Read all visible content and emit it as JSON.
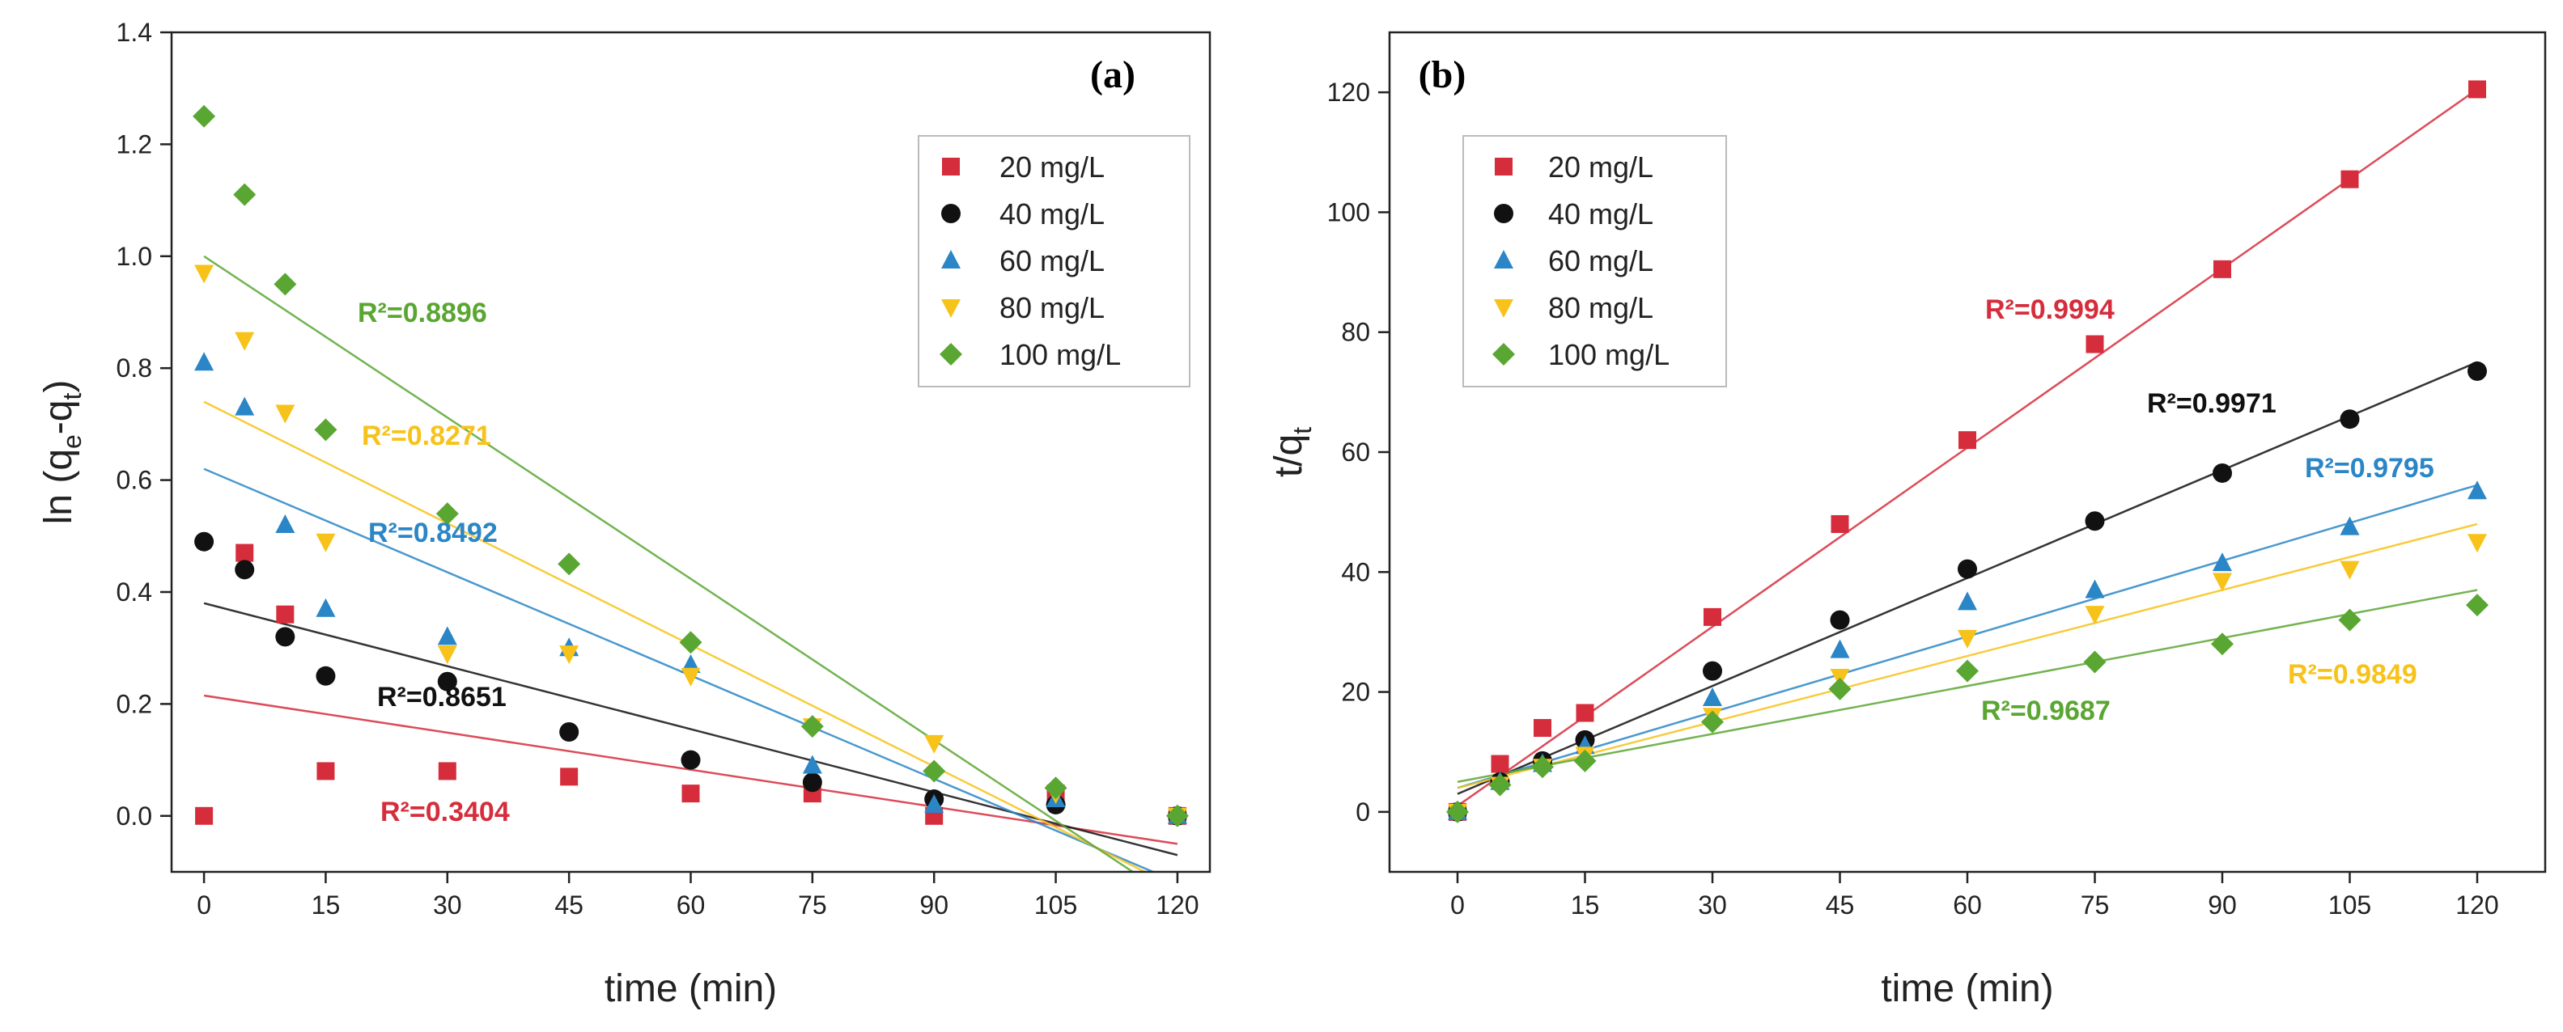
{
  "chart_data": [
    {
      "type": "scatter",
      "panel": "(a)",
      "xlabel": "time (min)",
      "ylabel_main": "ln (q",
      "ylabel_sub1": "e",
      "ylabel_mid": "-q",
      "ylabel_sub2": "t",
      "ylabel_end": ")",
      "xlim": [
        -4,
        124
      ],
      "ylim": [
        -0.1,
        1.4
      ],
      "xticks": [
        0,
        15,
        30,
        45,
        60,
        75,
        90,
        105,
        120
      ],
      "yticks": [
        0.0,
        0.2,
        0.4,
        0.6,
        0.8,
        1.0,
        1.2,
        1.4
      ],
      "ytick_labels": [
        "0.0",
        "0.2",
        "0.4",
        "0.6",
        "0.8",
        "1.0",
        "1.2",
        "1.4"
      ],
      "legend_position": "top-right",
      "x": [
        0,
        5,
        10,
        15,
        30,
        45,
        60,
        75,
        90,
        105,
        120
      ],
      "series": [
        {
          "name": "20 mg/L",
          "color": "#d62d3c",
          "marker": "square",
          "values": [
            0.0,
            0.47,
            0.36,
            0.08,
            0.08,
            0.07,
            0.04,
            0.04,
            0.0,
            0.04,
            0.0
          ],
          "fit": [
            [
              0,
              0.215
            ],
            [
              120,
              -0.05
            ]
          ],
          "r2_label": "R²=0.3404"
        },
        {
          "name": "40 mg/L",
          "color": "#111111",
          "marker": "circle",
          "values": [
            0.49,
            0.44,
            0.32,
            0.25,
            0.24,
            0.15,
            0.1,
            0.06,
            0.03,
            0.02,
            0.0
          ],
          "fit": [
            [
              0,
              0.38
            ],
            [
              120,
              -0.07
            ]
          ],
          "r2_label": "R²=0.8651"
        },
        {
          "name": "60 mg/L",
          "color": "#2a86c6",
          "marker": "triangle-up",
          "values": [
            0.81,
            0.73,
            0.52,
            0.37,
            0.32,
            0.3,
            0.27,
            0.09,
            0.02,
            0.03,
            0.0
          ],
          "fit": [
            [
              0,
              0.62
            ],
            [
              117,
              -0.1
            ]
          ],
          "r2_label": "R²=0.8492"
        },
        {
          "name": "80 mg/L",
          "color": "#f7c21a",
          "marker": "triangle-down",
          "values": [
            0.97,
            0.85,
            0.72,
            0.49,
            0.29,
            0.29,
            0.25,
            0.16,
            0.13,
            0.04,
            0.0
          ],
          "fit": [
            [
              0,
              0.74
            ],
            [
              116,
              -0.1
            ]
          ],
          "r2_label": "R²=0.8271"
        },
        {
          "name": "100 mg/L",
          "color": "#5aa632",
          "marker": "diamond",
          "values": [
            1.25,
            1.11,
            0.95,
            0.69,
            0.54,
            0.45,
            0.31,
            0.16,
            0.08,
            0.05,
            0.0
          ],
          "fit": [
            [
              0,
              1.0
            ],
            [
              114.5,
              -0.1
            ]
          ],
          "r2_label": "R²=0.8896"
        }
      ]
    },
    {
      "type": "scatter",
      "panel": "(b)",
      "xlabel": "time (min)",
      "ylabel_main": "t/q",
      "ylabel_sub1": "t",
      "xlim": [
        -8,
        128
      ],
      "ylim": [
        -10,
        130
      ],
      "xticks": [
        0,
        15,
        30,
        45,
        60,
        75,
        90,
        105,
        120
      ],
      "yticks": [
        0,
        20,
        40,
        60,
        80,
        100,
        120
      ],
      "ytick_labels": [
        "0",
        "20",
        "40",
        "60",
        "80",
        "100",
        "120"
      ],
      "legend_position": "top-left",
      "x": [
        0,
        5,
        10,
        15,
        30,
        45,
        60,
        75,
        90,
        105,
        120
      ],
      "series": [
        {
          "name": "20 mg/L",
          "color": "#d62d3c",
          "marker": "square",
          "values": [
            0,
            8,
            14,
            16.5,
            32.5,
            48,
            62,
            78,
            90.5,
            105.5,
            120.5
          ],
          "fit": [
            [
              0,
              1
            ],
            [
              120,
              120.5
            ]
          ],
          "r2_label": "R²=0.9994"
        },
        {
          "name": "40 mg/L",
          "color": "#111111",
          "marker": "circle",
          "values": [
            0,
            5,
            8.5,
            12,
            23.5,
            32,
            40.5,
            48.5,
            56.5,
            65.5,
            73.5
          ],
          "fit": [
            [
              0,
              3
            ],
            [
              120,
              75
            ]
          ],
          "r2_label": "R²=0.9971"
        },
        {
          "name": "60 mg/L",
          "color": "#2a86c6",
          "marker": "triangle-up",
          "values": [
            0,
            5,
            8,
            11,
            19,
            27,
            35,
            37,
            41.5,
            47.5,
            53.5
          ],
          "fit": [
            [
              0,
              4
            ],
            [
              120,
              54.5
            ]
          ],
          "r2_label": "R²=0.9795"
        },
        {
          "name": "80 mg/L",
          "color": "#f7c21a",
          "marker": "triangle-down",
          "values": [
            0,
            4.5,
            7.5,
            9.5,
            16,
            22.5,
            29,
            33,
            38.5,
            40.5,
            45
          ],
          "fit": [
            [
              0,
              4
            ],
            [
              120,
              48
            ]
          ],
          "r2_label": "R²=0.9849"
        },
        {
          "name": "100 mg/L",
          "color": "#5aa632",
          "marker": "diamond",
          "values": [
            0,
            4.5,
            7.5,
            8.5,
            15,
            20.5,
            23.5,
            25,
            28,
            32,
            34.5
          ],
          "fit": [
            [
              0,
              5
            ],
            [
              120,
              37
            ]
          ],
          "r2_label": "R²=0.9687"
        }
      ]
    }
  ]
}
